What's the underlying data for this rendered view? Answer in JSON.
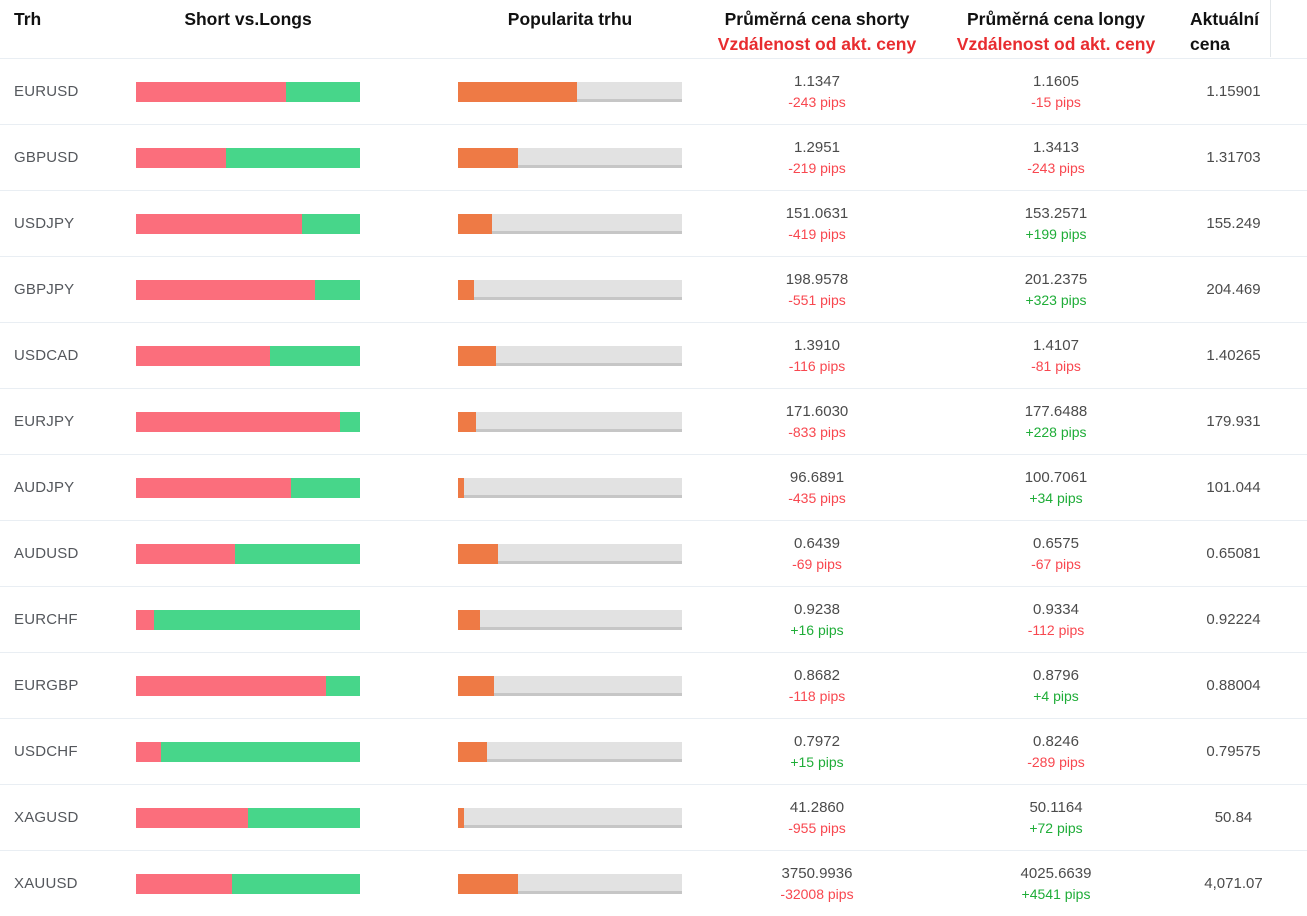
{
  "header": {
    "trh": "Trh",
    "short_vs_longs": "Short vs.Longs",
    "popularita": "Popularita trhu",
    "shorty_line1": "Průměrná cena shorty",
    "shorty_line2": "Vzdálenost od akt. ceny",
    "longy_line1": "Průměrná cena longy",
    "longy_line2": "Vzdálenost od akt. ceny",
    "aktualni_line1": "Aktuální",
    "aktualni_line2": "cena"
  },
  "colors": {
    "bar_red": "#fb6e7c",
    "bar_green": "#47d68a",
    "bar_orange": "#ee7a45",
    "bar_track": "#e2e2e2",
    "pips_red": "#f8474f",
    "pips_green": "#1fad38",
    "header_red": "#e82c2f",
    "price_text": "#4b4b4b",
    "label_text": "#54575c",
    "row_border": "#e9eef3"
  },
  "chart_data": {
    "type": "table",
    "note": "forex sentiment table; short_pct/long_pct = red/green share of Short vs.Longs bar, popularity_pct = orange fill of Popularita trhu bar"
  },
  "rows": [
    {
      "market": "EURUSD",
      "short_pct": 67,
      "long_pct": 33,
      "popularity_pct": 53,
      "short_price": "1.1347",
      "short_pips": "-243 pips",
      "long_price": "1.1605",
      "long_pips": "-15 pips",
      "current": "1.15901"
    },
    {
      "market": "GBPUSD",
      "short_pct": 40,
      "long_pct": 60,
      "popularity_pct": 27,
      "short_price": "1.2951",
      "short_pips": "-219 pips",
      "long_price": "1.3413",
      "long_pips": "-243 pips",
      "current": "1.31703"
    },
    {
      "market": "USDJPY",
      "short_pct": 74,
      "long_pct": 26,
      "popularity_pct": 15,
      "short_price": "151.0631",
      "short_pips": "-419 pips",
      "long_price": "153.2571",
      "long_pips": "+199 pips",
      "current": "155.249"
    },
    {
      "market": "GBPJPY",
      "short_pct": 80,
      "long_pct": 20,
      "popularity_pct": 7,
      "short_price": "198.9578",
      "short_pips": "-551 pips",
      "long_price": "201.2375",
      "long_pips": "+323 pips",
      "current": "204.469"
    },
    {
      "market": "USDCAD",
      "short_pct": 60,
      "long_pct": 40,
      "popularity_pct": 17,
      "short_price": "1.3910",
      "short_pips": "-116 pips",
      "long_price": "1.4107",
      "long_pips": "-81 pips",
      "current": "1.40265"
    },
    {
      "market": "EURJPY",
      "short_pct": 91,
      "long_pct": 9,
      "popularity_pct": 8,
      "short_price": "171.6030",
      "short_pips": "-833 pips",
      "long_price": "177.6488",
      "long_pips": "+228 pips",
      "current": "179.931"
    },
    {
      "market": "AUDJPY",
      "short_pct": 69,
      "long_pct": 31,
      "popularity_pct": 2.5,
      "short_price": "96.6891",
      "short_pips": "-435 pips",
      "long_price": "100.7061",
      "long_pips": "+34 pips",
      "current": "101.044"
    },
    {
      "market": "AUDUSD",
      "short_pct": 44,
      "long_pct": 56,
      "popularity_pct": 18,
      "short_price": "0.6439",
      "short_pips": "-69 pips",
      "long_price": "0.6575",
      "long_pips": "-67 pips",
      "current": "0.65081"
    },
    {
      "market": "EURCHF",
      "short_pct": 8,
      "long_pct": 92,
      "popularity_pct": 10,
      "short_price": "0.9238",
      "short_pips": "+16 pips",
      "long_price": "0.9334",
      "long_pips": "-112 pips",
      "current": "0.92224"
    },
    {
      "market": "EURGBP",
      "short_pct": 85,
      "long_pct": 15,
      "popularity_pct": 16,
      "short_price": "0.8682",
      "short_pips": "-118 pips",
      "long_price": "0.8796",
      "long_pips": "+4 pips",
      "current": "0.88004"
    },
    {
      "market": "USDCHF",
      "short_pct": 11,
      "long_pct": 89,
      "popularity_pct": 13,
      "short_price": "0.7972",
      "short_pips": "+15 pips",
      "long_price": "0.8246",
      "long_pips": "-289 pips",
      "current": "0.79575"
    },
    {
      "market": "XAGUSD",
      "short_pct": 50,
      "long_pct": 50,
      "popularity_pct": 2.5,
      "short_price": "41.2860",
      "short_pips": "-955 pips",
      "long_price": "50.1164",
      "long_pips": "+72 pips",
      "current": "50.84"
    },
    {
      "market": "XAUUSD",
      "short_pct": 43,
      "long_pct": 57,
      "popularity_pct": 27,
      "short_price": "3750.9936",
      "short_pips": "-32008 pips",
      "long_price": "4025.6639",
      "long_pips": "+4541 pips",
      "current": "4,071.07"
    }
  ]
}
